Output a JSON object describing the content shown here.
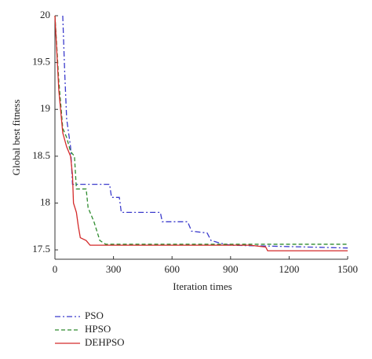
{
  "chart_data": {
    "type": "line",
    "x_label": "Iteration times",
    "y_label": "Global best fitness",
    "xlim": [
      0,
      1500
    ],
    "xticks": [
      0,
      300,
      600,
      900,
      1200,
      1500
    ],
    "ylim": [
      17.4,
      20
    ],
    "yticks": [
      17.5,
      18,
      18.5,
      19,
      19.5,
      20
    ],
    "series": [
      {
        "name": "PSO",
        "color": "#3b3bcc",
        "dash": "7 3 2 3",
        "x": [
          40,
          50,
          60,
          80,
          90,
          100,
          280,
          290,
          330,
          340,
          540,
          550,
          680,
          700,
          780,
          800,
          850,
          900,
          1500
        ],
        "values": [
          20,
          19.4,
          18.9,
          18.6,
          18.2,
          18.2,
          18.2,
          18.06,
          18.06,
          17.9,
          17.9,
          17.8,
          17.8,
          17.7,
          17.68,
          17.6,
          17.57,
          17.55,
          17.52
        ]
      },
      {
        "name": "HPSO",
        "color": "#2e8b2e",
        "dash": "5 3",
        "x": [
          0,
          20,
          40,
          60,
          80,
          100,
          110,
          160,
          170,
          200,
          230,
          260,
          1500
        ],
        "values": [
          20,
          19.3,
          18.8,
          18.7,
          18.55,
          18.5,
          18.15,
          18.15,
          17.95,
          17.8,
          17.6,
          17.56,
          17.56
        ]
      },
      {
        "name": "DEHPSO",
        "color": "#d42a2a",
        "dash": "none",
        "x": [
          0,
          20,
          40,
          60,
          80,
          90,
          95,
          110,
          120,
          130,
          160,
          180,
          1000,
          1080,
          1090,
          1500
        ],
        "values": [
          20,
          19.2,
          18.75,
          18.6,
          18.5,
          18.3,
          18,
          17.9,
          17.75,
          17.63,
          17.6,
          17.55,
          17.55,
          17.53,
          17.49,
          17.49
        ]
      }
    ]
  }
}
